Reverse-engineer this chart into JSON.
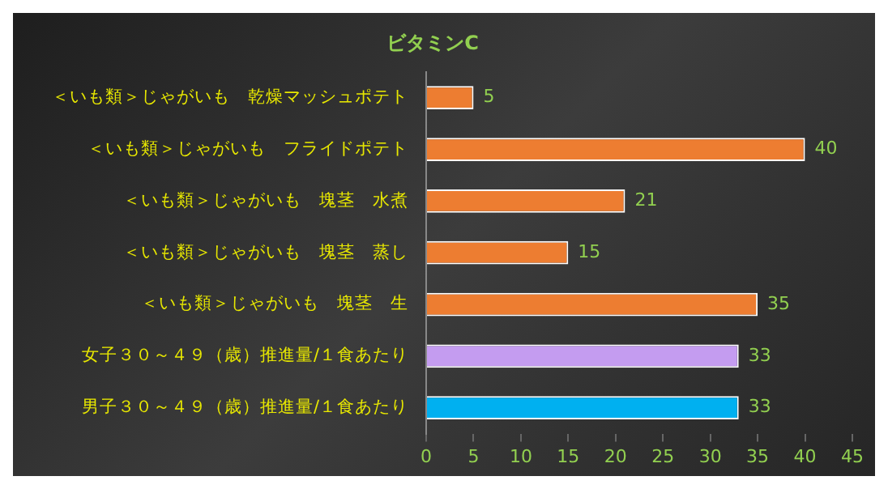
{
  "chart_data": {
    "type": "bar",
    "orientation": "horizontal",
    "title": "ビタミンC",
    "categories": [
      "＜いも類＞じゃがいも　乾燥マッシュポテト",
      "＜いも類＞じゃがいも　フライドポテト",
      "＜いも類＞じゃがいも　塊茎　水煮",
      "＜いも類＞じゃがいも　塊茎　蒸し",
      "＜いも類＞じゃがいも　塊茎　生",
      "女子３０～４９（歳）推進量/１食あたり",
      "男子３０～４９（歳）推進量/１食あたり"
    ],
    "values": [
      5,
      40,
      21,
      15,
      35,
      33,
      33
    ],
    "colors": [
      "#ed7d31",
      "#ed7d31",
      "#ed7d31",
      "#ed7d31",
      "#ed7d31",
      "#c49cf0",
      "#00b0f0"
    ],
    "xlim": [
      0,
      45
    ],
    "xticks": [
      0,
      5,
      10,
      15,
      20,
      25,
      30,
      35,
      40,
      45
    ],
    "grid": false,
    "legend": false,
    "data_labels": true
  }
}
